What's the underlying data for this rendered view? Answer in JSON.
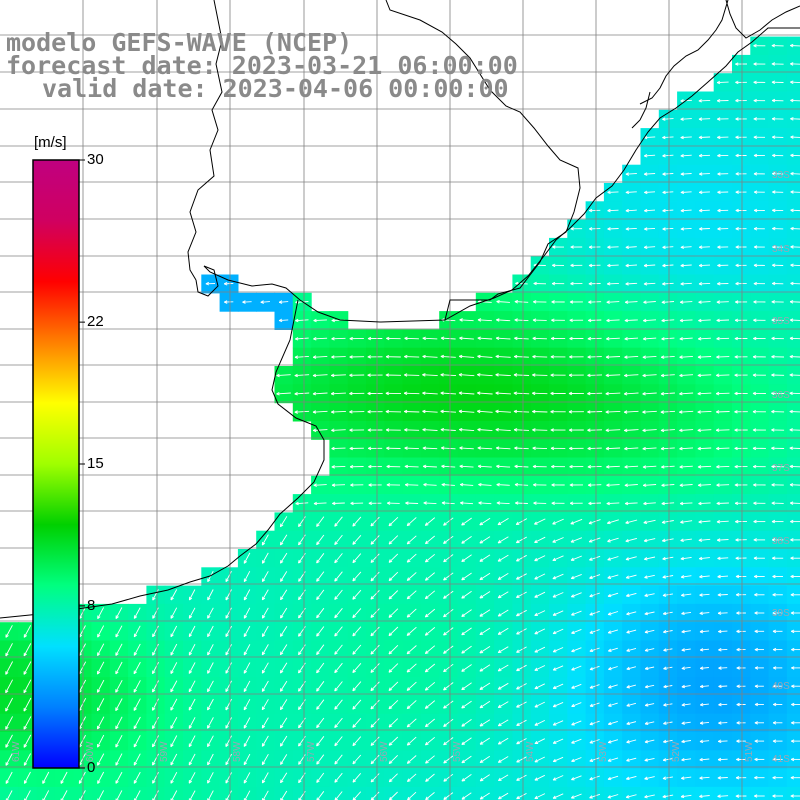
{
  "title": {
    "line1": "modelo GEFS-WAVE (NCEP)",
    "line2": "forecast date: 2023-03-21 06:00:00",
    "line3": "valid date: 2023-04-06 00:00:00"
  },
  "colorbar": {
    "unit": "[m/s]",
    "ticks": [
      {
        "value": 0,
        "label": "0"
      },
      {
        "value": 8,
        "label": "8"
      },
      {
        "value": 15,
        "label": "15"
      },
      {
        "value": 22,
        "label": "22"
      },
      {
        "value": 30,
        "label": "30"
      }
    ],
    "range": [
      0,
      30
    ],
    "colors": [
      "#0000ff",
      "#0080ff",
      "#00e0ff",
      "#00ff80",
      "#00d000",
      "#a0ff00",
      "#ffff00",
      "#ff8000",
      "#ff0000",
      "#d00060",
      "#c00080"
    ]
  },
  "lat_labels": [
    "33S",
    "34S",
    "35S",
    "36S",
    "37S",
    "38S",
    "39S",
    "40S",
    "41S"
  ],
  "lon_labels": [
    "61W",
    "60W",
    "59W",
    "58W",
    "57W",
    "56W",
    "55W",
    "54W",
    "53W",
    "52W",
    "51W"
  ],
  "wind_field": {
    "variable": "wind speed",
    "unit": "m/s",
    "lon_range": [
      -61,
      -50
    ],
    "lat_range": [
      -41.3,
      -31.7
    ]
  },
  "map_colors": {
    "land": "#ffffff",
    "coastline": "#000000",
    "grid": "#808080",
    "arrow": "#ffffff"
  }
}
